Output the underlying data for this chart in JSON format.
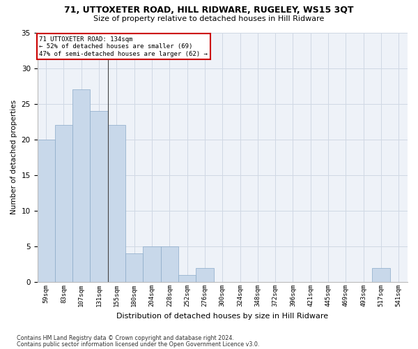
{
  "title1": "71, UTTOXETER ROAD, HILL RIDWARE, RUGELEY, WS15 3QT",
  "title2": "Size of property relative to detached houses in Hill Ridware",
  "xlabel": "Distribution of detached houses by size in Hill Ridware",
  "ylabel": "Number of detached properties",
  "footnote1": "Contains HM Land Registry data © Crown copyright and database right 2024.",
  "footnote2": "Contains public sector information licensed under the Open Government Licence v3.0.",
  "annotation_line1": "71 UTTOXETER ROAD: 134sqm",
  "annotation_line2": "← 52% of detached houses are smaller (69)",
  "annotation_line3": "47% of semi-detached houses are larger (62) →",
  "bar_color": "#c8d8ea",
  "bar_edge_color": "#8aaac8",
  "annotation_box_edge": "#cc0000",
  "categories": [
    "59sqm",
    "83sqm",
    "107sqm",
    "131sqm",
    "155sqm",
    "180sqm",
    "204sqm",
    "228sqm",
    "252sqm",
    "276sqm",
    "300sqm",
    "324sqm",
    "348sqm",
    "372sqm",
    "396sqm",
    "421sqm",
    "445sqm",
    "469sqm",
    "493sqm",
    "517sqm",
    "541sqm"
  ],
  "values": [
    20,
    22,
    27,
    24,
    22,
    4,
    5,
    5,
    1,
    2,
    0,
    0,
    0,
    0,
    0,
    0,
    0,
    0,
    0,
    2,
    0
  ],
  "ylim": [
    0,
    35
  ],
  "yticks": [
    0,
    5,
    10,
    15,
    20,
    25,
    30,
    35
  ],
  "grid_color": "#d0d8e4",
  "background_color": "#eef2f8",
  "vline_x": 3.5
}
